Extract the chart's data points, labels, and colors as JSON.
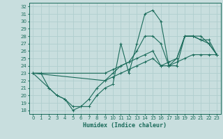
{
  "xlabel": "Humidex (Indice chaleur)",
  "background_color": "#c8dede",
  "grid_color": "#b0cece",
  "line_color": "#1a6b5a",
  "xlim": [
    -0.5,
    23.5
  ],
  "ylim": [
    17.5,
    32.5
  ],
  "xticks": [
    0,
    1,
    2,
    3,
    4,
    5,
    6,
    7,
    8,
    9,
    10,
    11,
    12,
    13,
    14,
    15,
    16,
    17,
    18,
    19,
    20,
    21,
    22,
    23
  ],
  "yticks": [
    18,
    19,
    20,
    21,
    22,
    23,
    24,
    25,
    26,
    27,
    28,
    29,
    30,
    31,
    32
  ],
  "line1_x": [
    0,
    1,
    2,
    3,
    4,
    5,
    6,
    7,
    8,
    9,
    10,
    11,
    12,
    13,
    14,
    15,
    16,
    17,
    18,
    19,
    20,
    21,
    22,
    23
  ],
  "line1_y": [
    23,
    23,
    21,
    20,
    19.5,
    18,
    18.5,
    18.5,
    20,
    21,
    21.5,
    27,
    23,
    27,
    31,
    31.5,
    30,
    24,
    24,
    28,
    28,
    27.5,
    27.5,
    25.5
  ],
  "line2_x": [
    0,
    2,
    3,
    4,
    5,
    6,
    7,
    8,
    9,
    10,
    11,
    12,
    13,
    14,
    15,
    16,
    17,
    18,
    19,
    20,
    21,
    22,
    23
  ],
  "line2_y": [
    23,
    21,
    20,
    19.5,
    18.5,
    18.5,
    19.5,
    21,
    22,
    23,
    24,
    24.5,
    26,
    28,
    28,
    27,
    24,
    25,
    28,
    28,
    28,
    27,
    25.5
  ],
  "line3_x": [
    0,
    9,
    10,
    11,
    12,
    13,
    14,
    15,
    16,
    17,
    18,
    19,
    20,
    21,
    22,
    23
  ],
  "line3_y": [
    23,
    22,
    22.5,
    23,
    23.5,
    24,
    24.5,
    25,
    24,
    24,
    24.5,
    25,
    25.5,
    25.5,
    25.5,
    25.5
  ],
  "line4_x": [
    0,
    9,
    10,
    11,
    12,
    13,
    14,
    15,
    16,
    17,
    18,
    19,
    20,
    21,
    22,
    23
  ],
  "line4_y": [
    23,
    23,
    23.5,
    24,
    24.5,
    25,
    25.5,
    26,
    24,
    24.5,
    25,
    28,
    28,
    27.5,
    27,
    25.5
  ]
}
